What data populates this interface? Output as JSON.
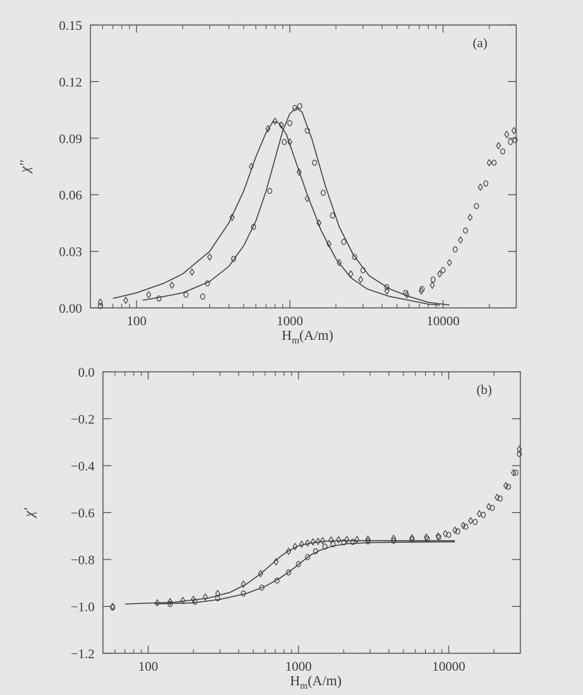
{
  "chart_data": [
    {
      "type": "scatter",
      "panel_label": "(a)",
      "xlabel": "H",
      "xlabel_sub": "m",
      "xlabel_unit": "(A/m)",
      "ylabel": "χ''",
      "x_scale": "log",
      "xlim": [
        50,
        30000
      ],
      "ylim": [
        0.0,
        0.15
      ],
      "x_ticks": [
        100,
        1000,
        10000
      ],
      "x_tick_labels": [
        "100",
        "1000",
        "10000"
      ],
      "y_ticks": [
        0.0,
        0.03,
        0.06,
        0.09,
        0.12,
        0.15
      ],
      "y_tick_labels": [
        "0.00",
        "0.03",
        "0.06",
        "0.09",
        "0.12",
        "0.15"
      ],
      "grid": false,
      "series": [
        {
          "marker": "diamond",
          "points": [
            [
              58,
              0.003
            ],
            [
              85,
              0.004
            ],
            [
              120,
              0.007
            ],
            [
              170,
              0.012
            ],
            [
              230,
              0.019
            ],
            [
              300,
              0.027
            ],
            [
              420,
              0.048
            ],
            [
              560,
              0.075
            ],
            [
              720,
              0.095
            ],
            [
              800,
              0.099
            ],
            [
              880,
              0.097
            ],
            [
              1000,
              0.088
            ],
            [
              1150,
              0.072
            ],
            [
              1300,
              0.058
            ],
            [
              1550,
              0.045
            ],
            [
              1800,
              0.034
            ],
            [
              2100,
              0.024
            ],
            [
              2500,
              0.018
            ],
            [
              2900,
              0.015
            ],
            [
              4300,
              0.009
            ],
            [
              5800,
              0.007
            ],
            [
              7200,
              0.009
            ],
            [
              8500,
              0.012
            ],
            [
              9500,
              0.018
            ],
            [
              11000,
              0.024
            ],
            [
              13000,
              0.036
            ],
            [
              15000,
              0.048
            ],
            [
              17500,
              0.064
            ],
            [
              20000,
              0.077
            ],
            [
              23000,
              0.086
            ],
            [
              26000,
              0.092
            ],
            [
              29000,
              0.094
            ]
          ]
        },
        {
          "marker": "circle",
          "points": [
            [
              58,
              0.001
            ],
            [
              140,
              0.005
            ],
            [
              210,
              0.007
            ],
            [
              270,
              0.006
            ],
            [
              290,
              0.013
            ],
            [
              430,
              0.026
            ],
            [
              580,
              0.043
            ],
            [
              740,
              0.062
            ],
            [
              920,
              0.088
            ],
            [
              1000,
              0.098
            ],
            [
              1080,
              0.106
            ],
            [
              1160,
              0.107
            ],
            [
              1300,
              0.094
            ],
            [
              1450,
              0.077
            ],
            [
              1650,
              0.061
            ],
            [
              1900,
              0.049
            ],
            [
              2250,
              0.035
            ],
            [
              2650,
              0.027
            ],
            [
              3000,
              0.02
            ],
            [
              4300,
              0.011
            ],
            [
              5700,
              0.008
            ],
            [
              7300,
              0.01
            ],
            [
              8600,
              0.015
            ],
            [
              10000,
              0.02
            ],
            [
              12000,
              0.031
            ],
            [
              14000,
              0.041
            ],
            [
              16500,
              0.054
            ],
            [
              19000,
              0.066
            ],
            [
              21500,
              0.077
            ],
            [
              24500,
              0.083
            ],
            [
              27500,
              0.088
            ],
            [
              29500,
              0.089
            ]
          ]
        }
      ],
      "fit_curves": [
        {
          "points": [
            [
              70,
              0.005
            ],
            [
              100,
              0.008
            ],
            [
              150,
              0.013
            ],
            [
              200,
              0.018
            ],
            [
              300,
              0.03
            ],
            [
              400,
              0.045
            ],
            [
              500,
              0.062
            ],
            [
              600,
              0.08
            ],
            [
              700,
              0.093
            ],
            [
              780,
              0.099
            ],
            [
              850,
              0.098
            ],
            [
              950,
              0.092
            ],
            [
              1100,
              0.077
            ],
            [
              1300,
              0.06
            ],
            [
              1600,
              0.041
            ],
            [
              2000,
              0.026
            ],
            [
              2500,
              0.016
            ],
            [
              3200,
              0.01
            ],
            [
              4500,
              0.006
            ],
            [
              6000,
              0.004
            ],
            [
              8000,
              0.002
            ],
            [
              9500,
              0.0015
            ]
          ]
        },
        {
          "points": [
            [
              110,
              0.004
            ],
            [
              150,
              0.006
            ],
            [
              200,
              0.008
            ],
            [
              300,
              0.014
            ],
            [
              400,
              0.022
            ],
            [
              500,
              0.033
            ],
            [
              600,
              0.046
            ],
            [
              700,
              0.062
            ],
            [
              800,
              0.079
            ],
            [
              900,
              0.094
            ],
            [
              1000,
              0.103
            ],
            [
              1100,
              0.106
            ],
            [
              1200,
              0.104
            ],
            [
              1400,
              0.089
            ],
            [
              1700,
              0.065
            ],
            [
              2100,
              0.043
            ],
            [
              2600,
              0.028
            ],
            [
              3300,
              0.017
            ],
            [
              4500,
              0.01
            ],
            [
              6000,
              0.006
            ],
            [
              8000,
              0.003
            ],
            [
              11000,
              0.0015
            ]
          ]
        }
      ]
    },
    {
      "type": "scatter",
      "panel_label": "(b)",
      "xlabel": "H",
      "xlabel_sub": "m",
      "xlabel_unit": "(A/m)",
      "ylabel": "χ'",
      "x_scale": "log",
      "xlim": [
        50,
        30000
      ],
      "ylim": [
        -1.2,
        0.0
      ],
      "x_ticks": [
        100,
        1000,
        10000
      ],
      "x_tick_labels": [
        "100",
        "1000",
        "10000"
      ],
      "y_ticks": [
        0.0,
        -0.2,
        -0.4,
        -0.6,
        -0.8,
        -1.0,
        -1.2
      ],
      "y_tick_labels": [
        "0.0",
        "−0.2",
        "−0.4",
        "−0.6",
        "−0.8",
        "−1.0",
        "−1.2"
      ],
      "grid": false,
      "series": [
        {
          "marker": "diamond",
          "points": [
            [
              58,
              -1.0
            ],
            [
              115,
              -0.985
            ],
            [
              140,
              -0.98
            ],
            [
              170,
              -0.975
            ],
            [
              200,
              -0.97
            ],
            [
              240,
              -0.96
            ],
            [
              290,
              -0.945
            ],
            [
              430,
              -0.905
            ],
            [
              560,
              -0.86
            ],
            [
              710,
              -0.81
            ],
            [
              860,
              -0.765
            ],
            [
              950,
              -0.745
            ],
            [
              1050,
              -0.735
            ],
            [
              1150,
              -0.73
            ],
            [
              1250,
              -0.725
            ],
            [
              1350,
              -0.723
            ],
            [
              1450,
              -0.72
            ],
            [
              1650,
              -0.717
            ],
            [
              1850,
              -0.716
            ],
            [
              2100,
              -0.715
            ],
            [
              2450,
              -0.715
            ],
            [
              2900,
              -0.713
            ],
            [
              4300,
              -0.71
            ],
            [
              5700,
              -0.708
            ],
            [
              7100,
              -0.705
            ],
            [
              8500,
              -0.7
            ],
            [
              9500,
              -0.69
            ],
            [
              11000,
              -0.675
            ],
            [
              12500,
              -0.655
            ],
            [
              14000,
              -0.635
            ],
            [
              16000,
              -0.605
            ],
            [
              18500,
              -0.575
            ],
            [
              21000,
              -0.535
            ],
            [
              24000,
              -0.485
            ],
            [
              27000,
              -0.43
            ],
            [
              29500,
              -0.33
            ]
          ]
        },
        {
          "marker": "circle",
          "points": [
            [
              58,
              -1.005
            ],
            [
              140,
              -0.99
            ],
            [
              205,
              -0.98
            ],
            [
              290,
              -0.965
            ],
            [
              430,
              -0.945
            ],
            [
              570,
              -0.92
            ],
            [
              720,
              -0.89
            ],
            [
              860,
              -0.855
            ],
            [
              1000,
              -0.82
            ],
            [
              1150,
              -0.79
            ],
            [
              1300,
              -0.765
            ],
            [
              1500,
              -0.745
            ],
            [
              1700,
              -0.735
            ],
            [
              2000,
              -0.727
            ],
            [
              2300,
              -0.725
            ],
            [
              2900,
              -0.723
            ],
            [
              4300,
              -0.72
            ],
            [
              5700,
              -0.715
            ],
            [
              7200,
              -0.712
            ],
            [
              8600,
              -0.705
            ],
            [
              10000,
              -0.695
            ],
            [
              11500,
              -0.68
            ],
            [
              13000,
              -0.66
            ],
            [
              15000,
              -0.64
            ],
            [
              17000,
              -0.61
            ],
            [
              19500,
              -0.58
            ],
            [
              22000,
              -0.54
            ],
            [
              25000,
              -0.49
            ],
            [
              28000,
              -0.43
            ],
            [
              29500,
              -0.35
            ]
          ]
        }
      ],
      "fit_curves": [
        {
          "points": [
            [
              70,
              -0.99
            ],
            [
              150,
              -0.982
            ],
            [
              250,
              -0.965
            ],
            [
              350,
              -0.94
            ],
            [
              450,
              -0.905
            ],
            [
              550,
              -0.865
            ],
            [
              650,
              -0.825
            ],
            [
              750,
              -0.79
            ],
            [
              850,
              -0.765
            ],
            [
              1000,
              -0.742
            ],
            [
              1200,
              -0.73
            ],
            [
              1500,
              -0.722
            ],
            [
              2000,
              -0.72
            ],
            [
              3000,
              -0.72
            ],
            [
              6000,
              -0.72
            ],
            [
              11000,
              -0.72
            ]
          ]
        },
        {
          "points": [
            [
              110,
              -0.99
            ],
            [
              200,
              -0.985
            ],
            [
              300,
              -0.97
            ],
            [
              450,
              -0.945
            ],
            [
              600,
              -0.915
            ],
            [
              750,
              -0.88
            ],
            [
              900,
              -0.845
            ],
            [
              1050,
              -0.81
            ],
            [
              1200,
              -0.782
            ],
            [
              1400,
              -0.76
            ],
            [
              1700,
              -0.742
            ],
            [
              2100,
              -0.733
            ],
            [
              3000,
              -0.728
            ],
            [
              6000,
              -0.726
            ],
            [
              11000,
              -0.725
            ]
          ]
        }
      ]
    }
  ]
}
